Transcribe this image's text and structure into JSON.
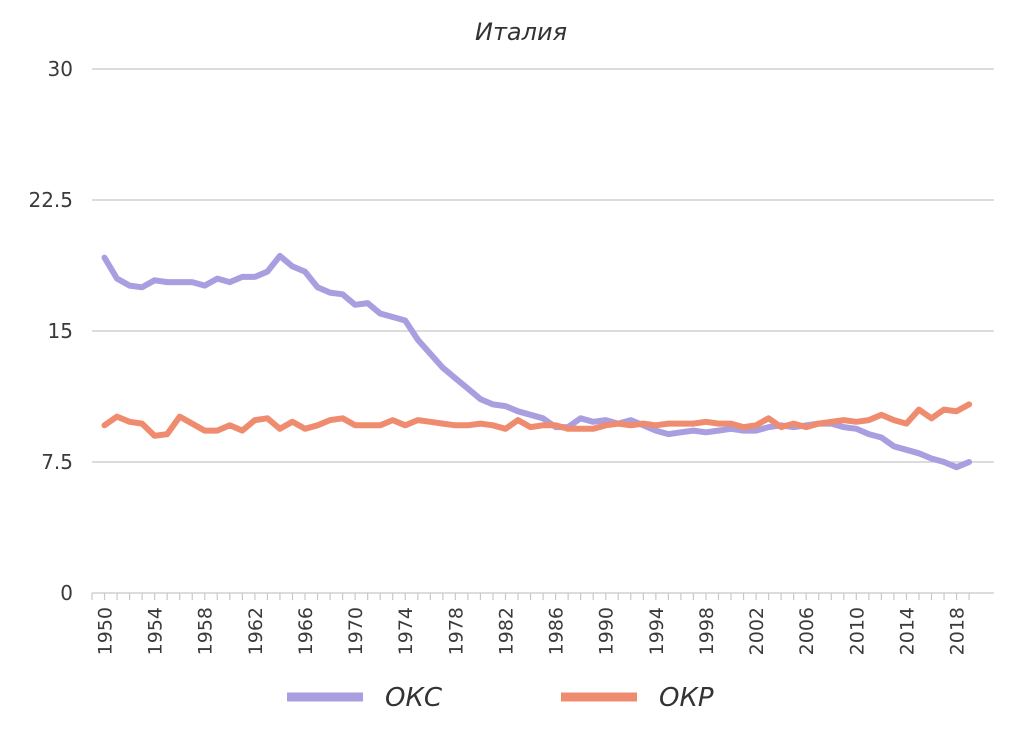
{
  "chart_data": {
    "type": "line",
    "title": "Италия",
    "xlabel": "",
    "ylabel": "",
    "ylim": [
      0,
      30
    ],
    "yticks": [
      "0",
      "7.5",
      "15",
      "22.5",
      "30"
    ],
    "xtick_labels": [
      "1950",
      "1954",
      "1958",
      "1962",
      "1966",
      "1970",
      "1974",
      "1978",
      "1982",
      "1986",
      "1990",
      "1994",
      "1998",
      "2002",
      "2006",
      "2010",
      "2014",
      "2018"
    ],
    "grid": true,
    "legend_position": "bottom",
    "x": [
      1950,
      1951,
      1952,
      1953,
      1954,
      1955,
      1956,
      1957,
      1958,
      1959,
      1960,
      1961,
      1962,
      1963,
      1964,
      1965,
      1966,
      1967,
      1968,
      1969,
      1970,
      1971,
      1972,
      1973,
      1974,
      1975,
      1976,
      1977,
      1978,
      1979,
      1980,
      1981,
      1982,
      1983,
      1984,
      1985,
      1986,
      1987,
      1988,
      1989,
      1990,
      1991,
      1992,
      1993,
      1994,
      1995,
      1996,
      1997,
      1998,
      1999,
      2000,
      2001,
      2002,
      2003,
      2004,
      2005,
      2006,
      2007,
      2008,
      2009,
      2010,
      2011,
      2012,
      2013,
      2014,
      2015,
      2016,
      2017,
      2018,
      2019
    ],
    "series": [
      {
        "name": "ОКС",
        "color": "#a99ee0",
        "values": [
          19.2,
          18.0,
          17.6,
          17.5,
          17.9,
          17.8,
          17.8,
          17.8,
          17.6,
          18.0,
          17.8,
          18.1,
          18.1,
          18.4,
          19.3,
          18.7,
          18.4,
          17.5,
          17.2,
          17.1,
          16.5,
          16.6,
          16.0,
          15.8,
          15.6,
          14.5,
          13.7,
          12.9,
          12.3,
          11.7,
          11.1,
          10.8,
          10.7,
          10.4,
          10.2,
          10.0,
          9.5,
          9.5,
          10.0,
          9.8,
          9.9,
          9.7,
          9.9,
          9.6,
          9.3,
          9.1,
          9.2,
          9.3,
          9.2,
          9.3,
          9.4,
          9.3,
          9.3,
          9.5,
          9.6,
          9.5,
          9.6,
          9.7,
          9.7,
          9.5,
          9.4,
          9.1,
          8.9,
          8.4,
          8.2,
          8.0,
          7.7,
          7.5,
          7.2,
          7.5
        ]
      },
      {
        "name": "ОКР",
        "color": "#ef8c6f",
        "values": [
          9.6,
          10.1,
          9.8,
          9.7,
          9.0,
          9.1,
          10.1,
          9.7,
          9.3,
          9.3,
          9.6,
          9.3,
          9.9,
          10.0,
          9.4,
          9.8,
          9.4,
          9.6,
          9.9,
          10.0,
          9.6,
          9.6,
          9.6,
          9.9,
          9.6,
          9.9,
          9.8,
          9.7,
          9.6,
          9.6,
          9.7,
          9.6,
          9.4,
          9.9,
          9.5,
          9.6,
          9.6,
          9.4,
          9.4,
          9.4,
          9.6,
          9.7,
          9.6,
          9.7,
          9.6,
          9.7,
          9.7,
          9.7,
          9.8,
          9.7,
          9.7,
          9.5,
          9.6,
          10.0,
          9.5,
          9.7,
          9.5,
          9.7,
          9.8,
          9.9,
          9.8,
          9.9,
          10.2,
          9.9,
          9.7,
          10.5,
          10.0,
          10.5,
          10.4,
          10.8
        ]
      }
    ]
  }
}
